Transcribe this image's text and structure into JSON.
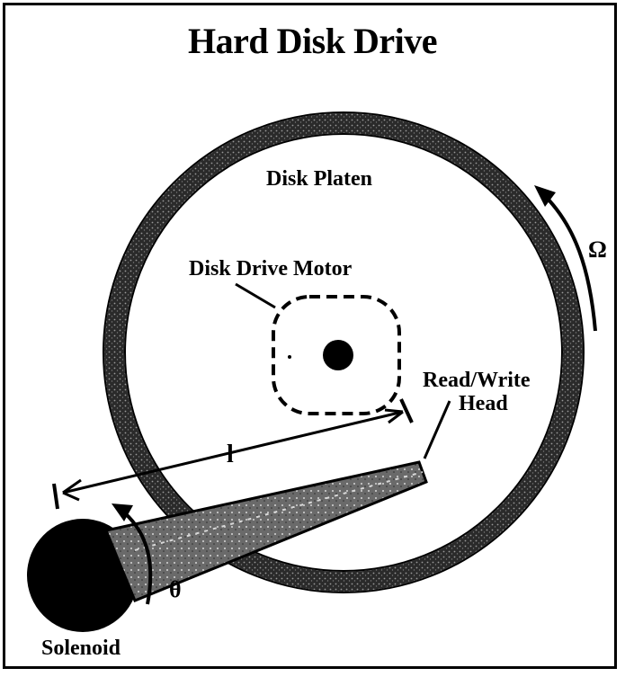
{
  "title": "Hard Disk Drive",
  "labels": {
    "platen": "Disk Platen",
    "motor": "Disk Drive Motor",
    "head_line1": "Read/Write",
    "head_line2": "Head",
    "length": "l",
    "omega": "Ω",
    "theta": "θ",
    "solenoid": "Solenoid"
  },
  "colors": {
    "ink": "#000000",
    "paper": "#ffffff",
    "arm": "#6a6a6a"
  }
}
